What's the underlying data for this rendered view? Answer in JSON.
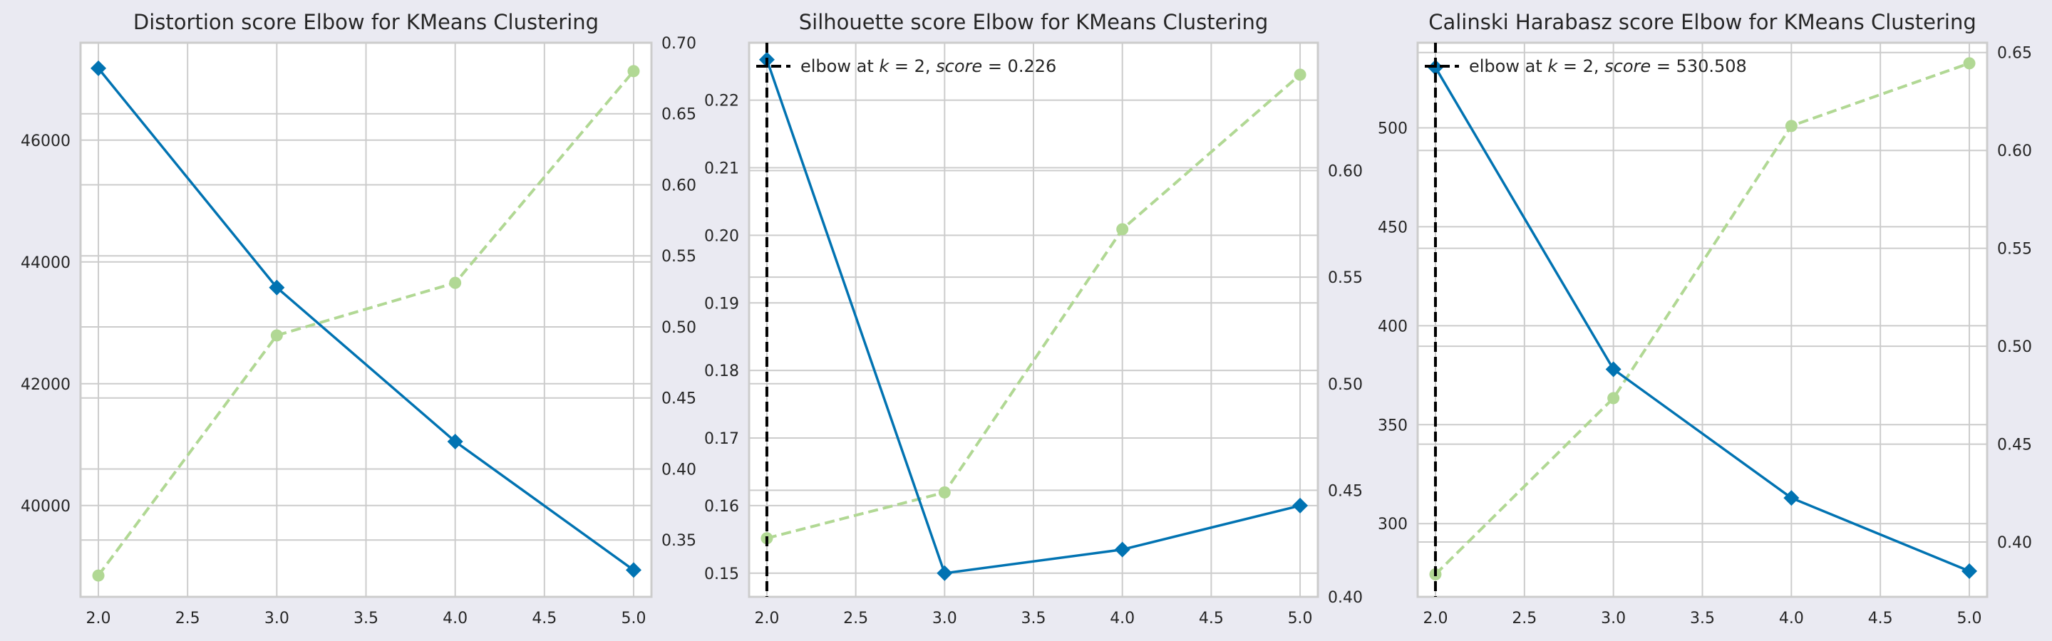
{
  "chart_data": [
    {
      "type": "line",
      "title": "Distortion score Elbow for KMeans Clustering",
      "x": [
        2.0,
        3.0,
        4.0,
        5.0
      ],
      "xlim": [
        1.9,
        5.1
      ],
      "x_ticks": [
        "2.0",
        "2.5",
        "3.0",
        "3.5",
        "4.0",
        "4.5",
        "5.0"
      ],
      "series": [
        {
          "values": [
            47180,
            43580,
            41050,
            38940
          ],
          "color": "#0173b2",
          "marker": "diamond",
          "style": "solid",
          "axis": "left"
        },
        {
          "values": [
            0.325,
            0.494,
            0.531,
            0.68
          ],
          "color": "#b1d894",
          "marker": "circle",
          "style": "dashed",
          "axis": "right"
        }
      ],
      "y_left": {
        "lim": [
          38500,
          47600
        ],
        "ticks": [
          40000,
          42000,
          44000,
          46000
        ],
        "tick_labels": [
          "40000",
          "42000",
          "44000",
          "46000"
        ]
      },
      "y_right": {
        "lim": [
          0.31,
          0.7
        ],
        "ticks": [
          0.35,
          0.4,
          0.45,
          0.5,
          0.55,
          0.6,
          0.65,
          0.7
        ],
        "tick_labels": [
          "0.35",
          "0.40",
          "0.45",
          "0.50",
          "0.55",
          "0.60",
          "0.65",
          "0.70"
        ]
      },
      "grid": true
    },
    {
      "type": "line",
      "title": "Silhouette score Elbow for KMeans Clustering",
      "x": [
        2.0,
        3.0,
        4.0,
        5.0
      ],
      "xlim": [
        1.9,
        5.1
      ],
      "x_ticks": [
        "2.0",
        "2.5",
        "3.0",
        "3.5",
        "4.0",
        "4.5",
        "5.0"
      ],
      "series": [
        {
          "values": [
            0.226,
            0.15,
            0.1535,
            0.16
          ],
          "color": "#0173b2",
          "marker": "diamond",
          "style": "solid",
          "axis": "left"
        },
        {
          "values": [
            0.4275,
            0.449,
            0.5725,
            0.645
          ],
          "color": "#b1d894",
          "marker": "circle",
          "style": "dashed",
          "axis": "right"
        }
      ],
      "y_left": {
        "lim": [
          0.1465,
          0.2285
        ],
        "ticks": [
          0.15,
          0.16,
          0.17,
          0.18,
          0.19,
          0.2,
          0.21,
          0.22
        ],
        "tick_labels": [
          "0.15",
          "0.16",
          "0.17",
          "0.18",
          "0.19",
          "0.20",
          "0.21",
          "0.22"
        ]
      },
      "y_right": {
        "lim": [
          0.4,
          0.66
        ],
        "ticks": [
          0.4,
          0.45,
          0.5,
          0.55,
          0.6
        ],
        "tick_labels": [
          "0.40",
          "0.45",
          "0.50",
          "0.55",
          "0.60"
        ]
      },
      "elbow": {
        "x": 2,
        "legend": "elbow at $k=2$, $score=0.226$",
        "legend_location": "upper left"
      },
      "grid": true
    },
    {
      "type": "line",
      "title": "Calinski Harabasz score Elbow for KMeans Clustering",
      "x": [
        2.0,
        3.0,
        4.0,
        5.0
      ],
      "xlim": [
        1.9,
        5.1
      ],
      "x_ticks": [
        "2.0",
        "2.5",
        "3.0",
        "3.5",
        "4.0",
        "4.5",
        "5.0"
      ],
      "series": [
        {
          "values": [
            530.5,
            378,
            313,
            276
          ],
          "color": "#0173b2",
          "marker": "diamond",
          "style": "solid",
          "axis": "left"
        },
        {
          "values": [
            0.3835,
            0.4735,
            0.6125,
            0.6445
          ],
          "color": "#b1d894",
          "marker": "circle",
          "style": "dashed",
          "axis": "right"
        }
      ],
      "y_left": {
        "lim": [
          263,
          543
        ],
        "ticks": [
          300,
          350,
          400,
          450,
          500
        ],
        "tick_labels": [
          "300",
          "350",
          "400",
          "450",
          "500"
        ]
      },
      "y_right": {
        "lim": [
          0.372,
          0.655
        ],
        "ticks": [
          0.4,
          0.45,
          0.5,
          0.55,
          0.6,
          0.65
        ],
        "tick_labels": [
          "0.40",
          "0.45",
          "0.50",
          "0.55",
          "0.60",
          "0.65"
        ]
      },
      "elbow": {
        "x": 2,
        "legend": "elbow at $k=2$, $score=530.508$",
        "legend_location": "upper left"
      },
      "grid": true
    }
  ]
}
